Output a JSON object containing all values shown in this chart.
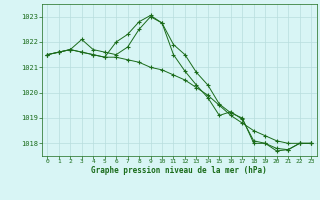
{
  "line1": {
    "x": [
      0,
      1,
      2,
      3,
      4,
      5,
      6,
      7,
      8,
      9,
      10,
      11,
      12,
      13,
      14,
      15,
      16,
      17,
      18,
      19,
      20,
      21,
      22,
      23
    ],
    "y": [
      1021.5,
      1021.6,
      1021.7,
      1021.6,
      1021.5,
      1021.4,
      1022.0,
      1022.3,
      1022.8,
      1023.05,
      1022.75,
      1021.9,
      1021.5,
      1020.8,
      1020.3,
      1019.55,
      1019.2,
      1019.0,
      1018.0,
      1018.0,
      1017.8,
      1017.75,
      1018.0,
      1018.0
    ]
  },
  "line2": {
    "x": [
      0,
      1,
      2,
      3,
      4,
      5,
      6,
      7,
      8,
      9,
      10,
      11,
      12,
      13,
      14,
      15,
      16,
      17,
      18,
      19,
      20,
      21,
      22,
      23
    ],
    "y": [
      1021.5,
      1021.6,
      1021.7,
      1021.6,
      1021.5,
      1021.4,
      1021.4,
      1021.3,
      1021.2,
      1021.0,
      1020.9,
      1020.7,
      1020.5,
      1020.2,
      1019.9,
      1019.5,
      1019.1,
      1018.8,
      1018.5,
      1018.3,
      1018.1,
      1018.0,
      1018.0,
      1018.0
    ]
  },
  "line3": {
    "x": [
      0,
      1,
      2,
      3,
      4,
      5,
      6,
      7,
      8,
      9,
      10,
      11,
      12,
      13,
      14,
      15,
      16,
      17,
      18,
      19,
      20,
      21,
      22,
      23
    ],
    "y": [
      1021.5,
      1021.6,
      1021.7,
      1022.1,
      1021.7,
      1021.6,
      1021.5,
      1021.8,
      1022.5,
      1023.0,
      1022.75,
      1021.5,
      1020.85,
      1020.3,
      1019.8,
      1019.1,
      1019.25,
      1018.95,
      1018.1,
      1018.0,
      1017.7,
      1017.75,
      1018.0,
      1018.0
    ]
  },
  "line_color": "#1a6b1a",
  "bg_color": "#d8f5f5",
  "grid_color": "#b8dede",
  "text_color": "#1a6b1a",
  "xlabel": "Graphe pression niveau de la mer (hPa)",
  "ylim": [
    1017.5,
    1023.5
  ],
  "xlim": [
    -0.5,
    23.5
  ],
  "yticks": [
    1018,
    1019,
    1020,
    1021,
    1022,
    1023
  ],
  "xticks": [
    0,
    1,
    2,
    3,
    4,
    5,
    6,
    7,
    8,
    9,
    10,
    11,
    12,
    13,
    14,
    15,
    16,
    17,
    18,
    19,
    20,
    21,
    22,
    23
  ]
}
